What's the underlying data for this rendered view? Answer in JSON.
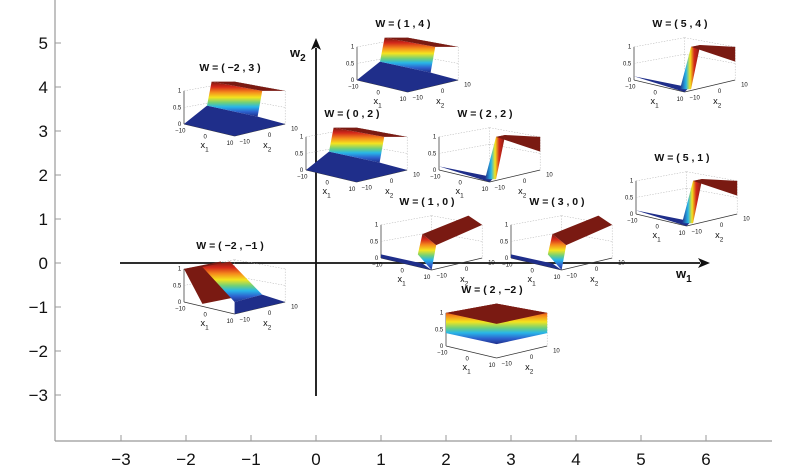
{
  "chart_data": {
    "type": "scatter",
    "title": "",
    "description": "Weight space (w1, w2) with 3D sigmoid surface plots of a single neuron output over inputs (x1, x2) placed at each weight vector W",
    "xlabel": "w1",
    "ylabel": "w2",
    "x_ticks": [
      "-3",
      "-2",
      "-1",
      "0",
      "1",
      "2",
      "3",
      "4",
      "5",
      "6"
    ],
    "y_ticks": [
      "5",
      "4",
      "3",
      "2",
      "1",
      "0",
      "-1",
      "-2",
      "-3"
    ],
    "xlim": [
      -3.6,
      7
    ],
    "ylim": [
      -3.8,
      5.8
    ],
    "grid": false,
    "points": [
      {
        "label": "W = ( -2 , 3 )",
        "w1": -2,
        "w2": 3
      },
      {
        "label": "W = ( 1 , 4 )",
        "w1": 1,
        "w2": 4
      },
      {
        "label": "W = ( 5 , 4 )",
        "w1": 5,
        "w2": 4
      },
      {
        "label": "W = ( 0 , 2 )",
        "w1": 0,
        "w2": 2
      },
      {
        "label": "W = ( 2 , 2 )",
        "w1": 2,
        "w2": 2
      },
      {
        "label": "W = ( 5 , 1 )",
        "w1": 5,
        "w2": 1
      },
      {
        "label": "W = ( 1 , 0 )",
        "w1": 1,
        "w2": 0
      },
      {
        "label": "W = ( 3 , 0 )",
        "w1": 3,
        "w2": 0
      },
      {
        "label": "W = ( -2 , -1 )",
        "w1": -2,
        "w2": -1
      },
      {
        "label": "W = ( 2 , -2 )",
        "w1": 2,
        "w2": -2
      }
    ],
    "subplot_axes": {
      "z_ticks": [
        "0",
        "0.5",
        "1"
      ],
      "x1_ticks": [
        "-10",
        "0",
        "10"
      ],
      "x2_ticks": [
        "-10",
        "0",
        "10"
      ],
      "x1_label": "x",
      "x1_sub": "1",
      "x2_label": "x",
      "x2_sub": "2"
    }
  },
  "axes": {
    "w1_label": "w",
    "w1_sub": "1",
    "w2_label": "w",
    "w2_sub": "2"
  },
  "colors": {
    "frame": "#999999",
    "axis_arrow": "#111111",
    "surface_low": "#1f2e8a",
    "surface_high": "#7a1a12"
  }
}
